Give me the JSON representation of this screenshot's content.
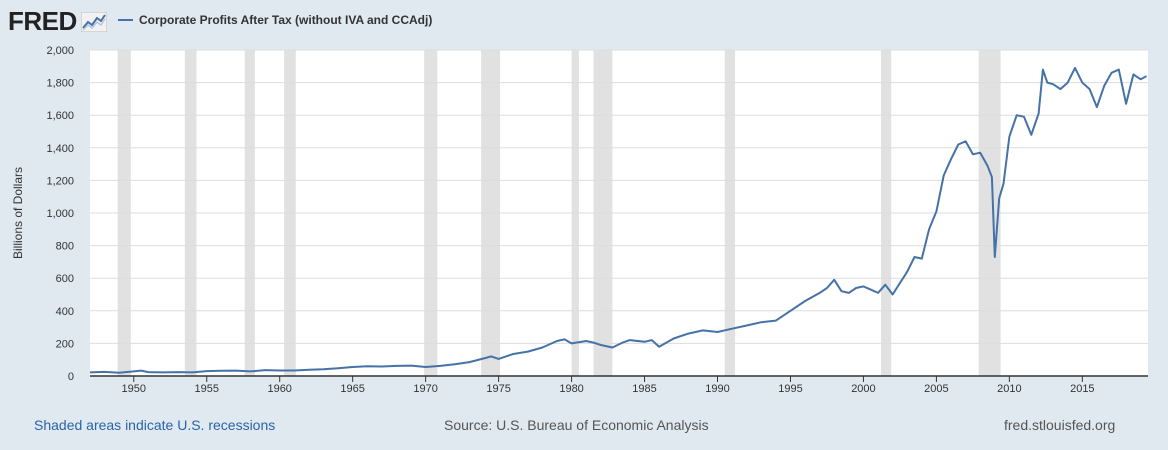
{
  "logo": {
    "text": "FRED"
  },
  "legend": {
    "series_label": "Corporate Profits After Tax (without IVA and CCAdj)"
  },
  "footer": {
    "recession_note": "Shaded areas indicate U.S. recessions",
    "source": "Source: U.S. Bureau of Economic Analysis",
    "site": "fred.stlouisfed.org"
  },
  "colors": {
    "line": "#4572a7",
    "recession": "#e1e1e1",
    "background": "#e1e9f0",
    "plot": "#ffffff",
    "grid": "#dddddd"
  },
  "chart_data": {
    "type": "line",
    "ylabel": "Billions of Dollars",
    "xlabel": "",
    "ylim": [
      0,
      2000
    ],
    "xlim": [
      1947.0,
      2019.5
    ],
    "yticks": [
      0,
      200,
      400,
      600,
      800,
      1000,
      1200,
      1400,
      1600,
      1800,
      2000
    ],
    "ytick_labels": [
      "0",
      "200",
      "400",
      "600",
      "800",
      "1,000",
      "1,200",
      "1,400",
      "1,600",
      "1,800",
      "2,000"
    ],
    "xticks": [
      1950,
      1955,
      1960,
      1965,
      1970,
      1975,
      1980,
      1985,
      1990,
      1995,
      2000,
      2005,
      2010,
      2015
    ],
    "grid": "horizontal",
    "recessions": [
      [
        1948.9,
        1949.8
      ],
      [
        1953.5,
        1954.3
      ],
      [
        1957.6,
        1958.3
      ],
      [
        1960.3,
        1961.1
      ],
      [
        1969.9,
        1970.8
      ],
      [
        1973.8,
        1975.1
      ],
      [
        1980.0,
        1980.5
      ],
      [
        1981.5,
        1982.8
      ],
      [
        1990.5,
        1991.2
      ],
      [
        2001.2,
        2001.9
      ],
      [
        2007.9,
        2009.4
      ]
    ],
    "series": [
      {
        "x": [
          1947,
          1948,
          1949,
          1950,
          1950.5,
          1951,
          1952,
          1953,
          1954,
          1955,
          1956,
          1957,
          1958,
          1959,
          1960,
          1961,
          1962,
          1963,
          1964,
          1965,
          1966,
          1967,
          1968,
          1969,
          1970,
          1971,
          1972,
          1973,
          1974,
          1974.5,
          1975,
          1976,
          1977,
          1978,
          1979,
          1979.5,
          1980,
          1981,
          1981.5,
          1982,
          1982.8,
          1983.5,
          1984,
          1985,
          1985.5,
          1986,
          1987,
          1988,
          1989,
          1990,
          1991,
          1992,
          1993,
          1994,
          1995,
          1996,
          1997,
          1997.5,
          1998,
          1998.5,
          1999,
          1999.5,
          2000,
          2000.5,
          2001,
          2001.5,
          2002,
          2003,
          2003.5,
          2004,
          2004.5,
          2005,
          2005.5,
          2006,
          2006.5,
          2007,
          2007.5,
          2008,
          2008.5,
          2008.8,
          2009.0,
          2009.3,
          2009.6,
          2010,
          2010.5,
          2011,
          2011.5,
          2012,
          2012.3,
          2012.6,
          2013,
          2013.5,
          2014,
          2014.5,
          2015,
          2015.5,
          2016,
          2016.5,
          2017,
          2017.5,
          2018,
          2018.5,
          2019,
          2019.4
        ],
        "values": [
          22,
          25,
          20,
          28,
          33,
          24,
          22,
          24,
          22,
          30,
          32,
          33,
          28,
          36,
          34,
          34,
          38,
          42,
          48,
          55,
          60,
          58,
          62,
          64,
          55,
          62,
          72,
          85,
          108,
          120,
          105,
          135,
          150,
          175,
          215,
          225,
          200,
          215,
          205,
          190,
          175,
          205,
          220,
          210,
          220,
          180,
          230,
          260,
          280,
          270,
          290,
          310,
          330,
          340,
          400,
          460,
          510,
          540,
          590,
          520,
          510,
          540,
          550,
          530,
          510,
          560,
          500,
          640,
          730,
          720,
          900,
          1010,
          1230,
          1330,
          1420,
          1440,
          1360,
          1370,
          1290,
          1220,
          730,
          1090,
          1180,
          1470,
          1600,
          1590,
          1480,
          1610,
          1880,
          1800,
          1790,
          1760,
          1800,
          1890,
          1800,
          1760,
          1650,
          1780,
          1860,
          1880,
          1670,
          1850,
          1820,
          1840
        ]
      }
    ]
  }
}
